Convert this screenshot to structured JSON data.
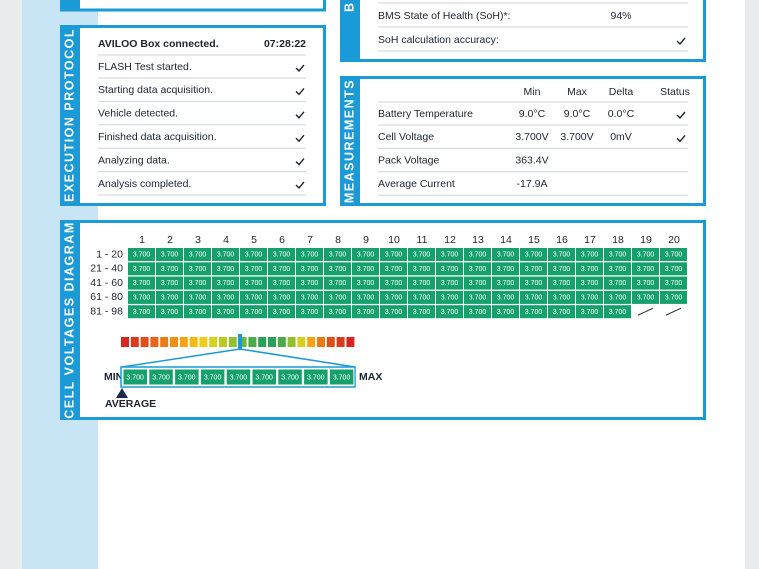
{
  "exec": {
    "label": "EXECUTION PROTOCOL",
    "header": "AVILOO Box connected.",
    "time": "07:28:22",
    "steps": [
      {
        "text": "FLASH Test started.",
        "checked": true
      },
      {
        "text": "Starting data acquisition.",
        "checked": true
      },
      {
        "text": "Vehicle detected.",
        "checked": true
      },
      {
        "text": "Finished data acquisition.",
        "checked": true
      },
      {
        "text": "Analyzing data.",
        "checked": true
      },
      {
        "text": "Analysis completed.",
        "checked": true
      }
    ]
  },
  "bms": {
    "label": "B",
    "rows": [
      {
        "label": "BMS State of Health (SoH)*:",
        "value": "94%"
      },
      {
        "label": "SoH calculation accuracy:",
        "checked": true
      }
    ]
  },
  "measurements": {
    "label": "MEASUREMENTS",
    "columns": [
      "Min",
      "Max",
      "Delta",
      "Status"
    ],
    "rows": [
      {
        "label": "Battery Temperature",
        "min": "9.0°C",
        "max": "9.0°C",
        "delta": "0.0°C",
        "checked": true
      },
      {
        "label": "Cell Voltage",
        "min": "3.700V",
        "max": "3.700V",
        "delta": "0mV",
        "checked": true
      },
      {
        "label": "Pack Voltage",
        "min": "363.4V"
      },
      {
        "label": "Average Current",
        "min": "-17.9A"
      }
    ]
  },
  "cells": {
    "label": "CELL VOLTAGES DIAGRAM",
    "columns": [
      1,
      2,
      3,
      4,
      5,
      6,
      7,
      8,
      9,
      10,
      11,
      12,
      13,
      14,
      15,
      16,
      17,
      18,
      19,
      20
    ],
    "row_labels": [
      "1 - 20",
      "21 - 40",
      "41 - 60",
      "61 - 80",
      "81 - 98"
    ],
    "rows": [
      [
        "3.700",
        "3.700",
        "3.700",
        "3.700",
        "3.700",
        "3.700",
        "3.700",
        "3.700",
        "3.700",
        "3.700",
        "3.700",
        "3.700",
        "3.700",
        "3.700",
        "3.700",
        "3.700",
        "3.700",
        "3.700",
        "3.700",
        "3.700"
      ],
      [
        "3.700",
        "3.700",
        "3.700",
        "3.700",
        "3.700",
        "3.700",
        "3.700",
        "3.700",
        "3.700",
        "3.700",
        "3.700",
        "3.700",
        "3.700",
        "3.700",
        "3.700",
        "3.700",
        "3.700",
        "3.700",
        "3.700",
        "3.700"
      ],
      [
        "3.700",
        "3.700",
        "3.700",
        "3.700",
        "3.700",
        "3.700",
        "3.700",
        "3.700",
        "3.700",
        "3.700",
        "3.700",
        "3.700",
        "3.700",
        "3.700",
        "3.700",
        "3.700",
        "3.700",
        "3.700",
        "3.700",
        "3.700"
      ],
      [
        "3.700",
        "3.700",
        "3.700",
        "3.700",
        "3.700",
        "3.700",
        "3.700",
        "3.700",
        "3.700",
        "3.700",
        "3.700",
        "3.700",
        "3.700",
        "3.700",
        "3.700",
        "3.700",
        "3.700",
        "3.700",
        "3.700",
        "3.700"
      ],
      [
        "3.700",
        "3.700",
        "3.700",
        "3.700",
        "3.700",
        "3.700",
        "3.700",
        "3.700",
        "3.700",
        "3.700",
        "3.700",
        "3.700",
        "3.700",
        "3.700",
        "3.700",
        "3.700",
        "3.700",
        "3.700"
      ]
    ],
    "zoom": [
      "3.700",
      "3.700",
      "3.700",
      "3.700",
      "3.700",
      "3.700",
      "3.700",
      "3.700",
      "3.700"
    ],
    "min_label": "MIN",
    "max_label": "MAX",
    "average_label": "AVERAGE"
  }
}
